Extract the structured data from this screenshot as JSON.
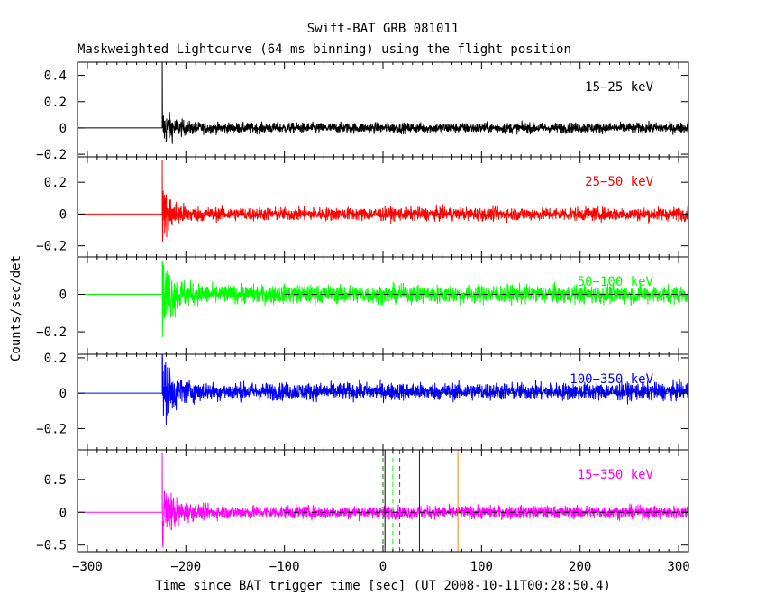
{
  "title": "Swift-BAT GRB 081011",
  "subtitle": "Maskweighted Lightcurve (64 ms binning) using the flight position",
  "ylabel": "Counts/sec/det",
  "xlabel": "Time since BAT trigger time [sec] (UT 2008-10-11T00:28:50.4)",
  "colors": {
    "black": "#000000",
    "red": "#ff0000",
    "green": "#00ff00",
    "blue": "#0000ff",
    "magenta": "#ff00ff",
    "orange": "#ff8000",
    "darkgreen": "#008000"
  },
  "chart_data": {
    "type": "line",
    "x_range": [
      -310,
      310
    ],
    "x_ticks": [
      -300,
      -200,
      -100,
      0,
      100,
      200,
      300
    ],
    "burst_start": -224,
    "panels": [
      {
        "name": "15-25 keV",
        "label": "15−25 keV",
        "color": "#000000",
        "ylim": [
          -0.22,
          0.5
        ],
        "yticks": [
          -0.2,
          0,
          0.2,
          0.4
        ],
        "ytick_labels": [
          "−0.2",
          "0",
          "0.2",
          "0.4"
        ],
        "peak": 0.5,
        "decay_amp": 0.09,
        "noise": 0.028,
        "level": 0.0,
        "zero_dashed": false
      },
      {
        "name": "25-50 keV",
        "label": "25−50 keV",
        "color": "#ff0000",
        "ylim": [
          -0.27,
          0.36
        ],
        "yticks": [
          -0.2,
          0,
          0.2
        ],
        "ytick_labels": [
          "−0.2",
          "0",
          "0.2"
        ],
        "peak": 0.34,
        "decay_amp": 0.1,
        "noise": 0.03,
        "level": 0.0,
        "zero_dashed": false
      },
      {
        "name": "50-100 keV",
        "label": "50−100 keV",
        "color": "#00ff00",
        "ylim": [
          -0.32,
          0.2
        ],
        "yticks": [
          -0.2,
          0
        ],
        "ytick_labels": [
          "−0.2",
          "0"
        ],
        "peak": 0.18,
        "decay_amp": 0.12,
        "noise": 0.035,
        "level": 0.0,
        "zero_dashed": true
      },
      {
        "name": "100-350 keV",
        "label": "100−350 keV",
        "color": "#0000ff",
        "ylim": [
          -0.32,
          0.22
        ],
        "yticks": [
          -0.2,
          0,
          0.2
        ],
        "ytick_labels": [
          "−0.2",
          "0",
          "0.2"
        ],
        "peak": 0.2,
        "decay_amp": 0.12,
        "noise": 0.035,
        "level": 0.01,
        "zero_dashed": true
      },
      {
        "name": "15-350 keV",
        "label": "15−350 keV",
        "color": "#ff00ff",
        "ylim": [
          -0.6,
          0.95
        ],
        "yticks": [
          -0.5,
          0,
          0.5
        ],
        "ytick_labels": [
          "−0.5",
          "0",
          "0.5"
        ],
        "peak": 0.9,
        "decay_amp": 0.3,
        "noise": 0.07,
        "level": 0.0,
        "zero_dashed": true,
        "vlines": [
          {
            "x": 0,
            "color": "#008000",
            "dashed": true
          },
          {
            "x": 2,
            "color": "#000000",
            "dashed": false
          },
          {
            "x": 10,
            "color": "#00ff00",
            "dashed": true
          },
          {
            "x": 17,
            "color": "#008000",
            "dashed": true
          },
          {
            "x": 37,
            "color": "#0000ff",
            "dashed": false
          },
          {
            "x": 76,
            "color": "#ff8000",
            "dashed": false
          }
        ]
      }
    ]
  }
}
